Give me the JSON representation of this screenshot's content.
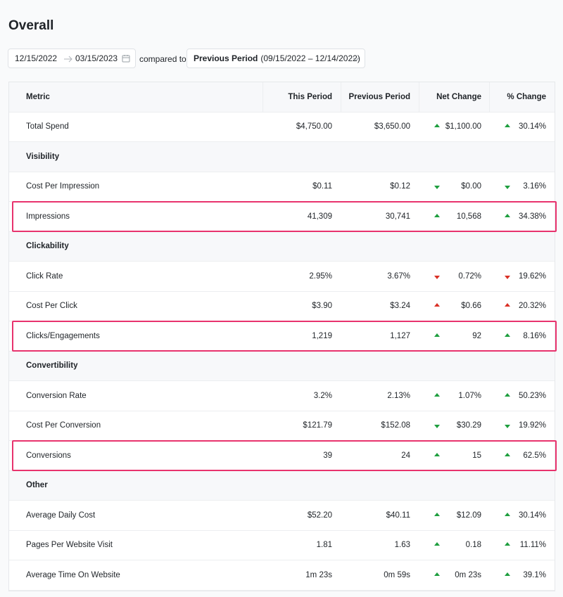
{
  "header": {
    "title": "Overall"
  },
  "filters": {
    "start_date": "12/15/2022",
    "end_date": "03/15/2023",
    "compared_label": "compared to",
    "period": "Previous Period",
    "period_range": "(09/15/2022 – 12/14/2022)"
  },
  "table": {
    "columns": [
      "Metric",
      "This Period",
      "Previous Period",
      "Net Change",
      "% Change"
    ],
    "rows": [
      {
        "cells": [
          "Total Spend",
          "$4,750.00",
          "$3,650.00",
          "$1,100.00",
          "30.14%"
        ],
        "trend": "up",
        "good": true,
        "highlight": false
      },
      {
        "section": "Visibility"
      },
      {
        "cells": [
          "Cost Per Impression",
          "$0.11",
          "$0.12",
          "$0.00",
          "3.16%"
        ],
        "trend": "down",
        "good": true,
        "highlight": false
      },
      {
        "cells": [
          "Impressions",
          "41,309",
          "30,741",
          "10,568",
          "34.38%"
        ],
        "trend": "up",
        "good": true,
        "highlight": true
      },
      {
        "section": "Clickability"
      },
      {
        "cells": [
          "Click Rate",
          "2.95%",
          "3.67%",
          "0.72%",
          "19.62%"
        ],
        "trend": "down",
        "good": false,
        "highlight": false
      },
      {
        "cells": [
          "Cost Per Click",
          "$3.90",
          "$3.24",
          "$0.66",
          "20.32%"
        ],
        "trend": "up",
        "good": false,
        "highlight": false
      },
      {
        "cells": [
          "Clicks/Engagements",
          "1,219",
          "1,127",
          "92",
          "8.16%"
        ],
        "trend": "up",
        "good": true,
        "highlight": true
      },
      {
        "section": "Convertibility"
      },
      {
        "cells": [
          "Conversion Rate",
          "3.2%",
          "2.13%",
          "1.07%",
          "50.23%"
        ],
        "trend": "up",
        "good": true,
        "highlight": false
      },
      {
        "cells": [
          "Cost Per Conversion",
          "$121.79",
          "$152.08",
          "$30.29",
          "19.92%"
        ],
        "trend": "down",
        "good": true,
        "highlight": false
      },
      {
        "cells": [
          "Conversions",
          "39",
          "24",
          "15",
          "62.5%"
        ],
        "trend": "up",
        "good": true,
        "highlight": true
      },
      {
        "section": "Other"
      },
      {
        "cells": [
          "Average Daily Cost",
          "$52.20",
          "$40.11",
          "$12.09",
          "30.14%"
        ],
        "trend": "up",
        "good": true,
        "highlight": false
      },
      {
        "cells": [
          "Pages Per Website Visit",
          "1.81",
          "1.63",
          "0.18",
          "11.11%"
        ],
        "trend": "up",
        "good": true,
        "highlight": false
      },
      {
        "cells": [
          "Average Time On Website",
          "1m 23s",
          "0m 59s",
          "0m 23s",
          "39.1%"
        ],
        "trend": "up",
        "good": true,
        "highlight": false
      }
    ]
  }
}
